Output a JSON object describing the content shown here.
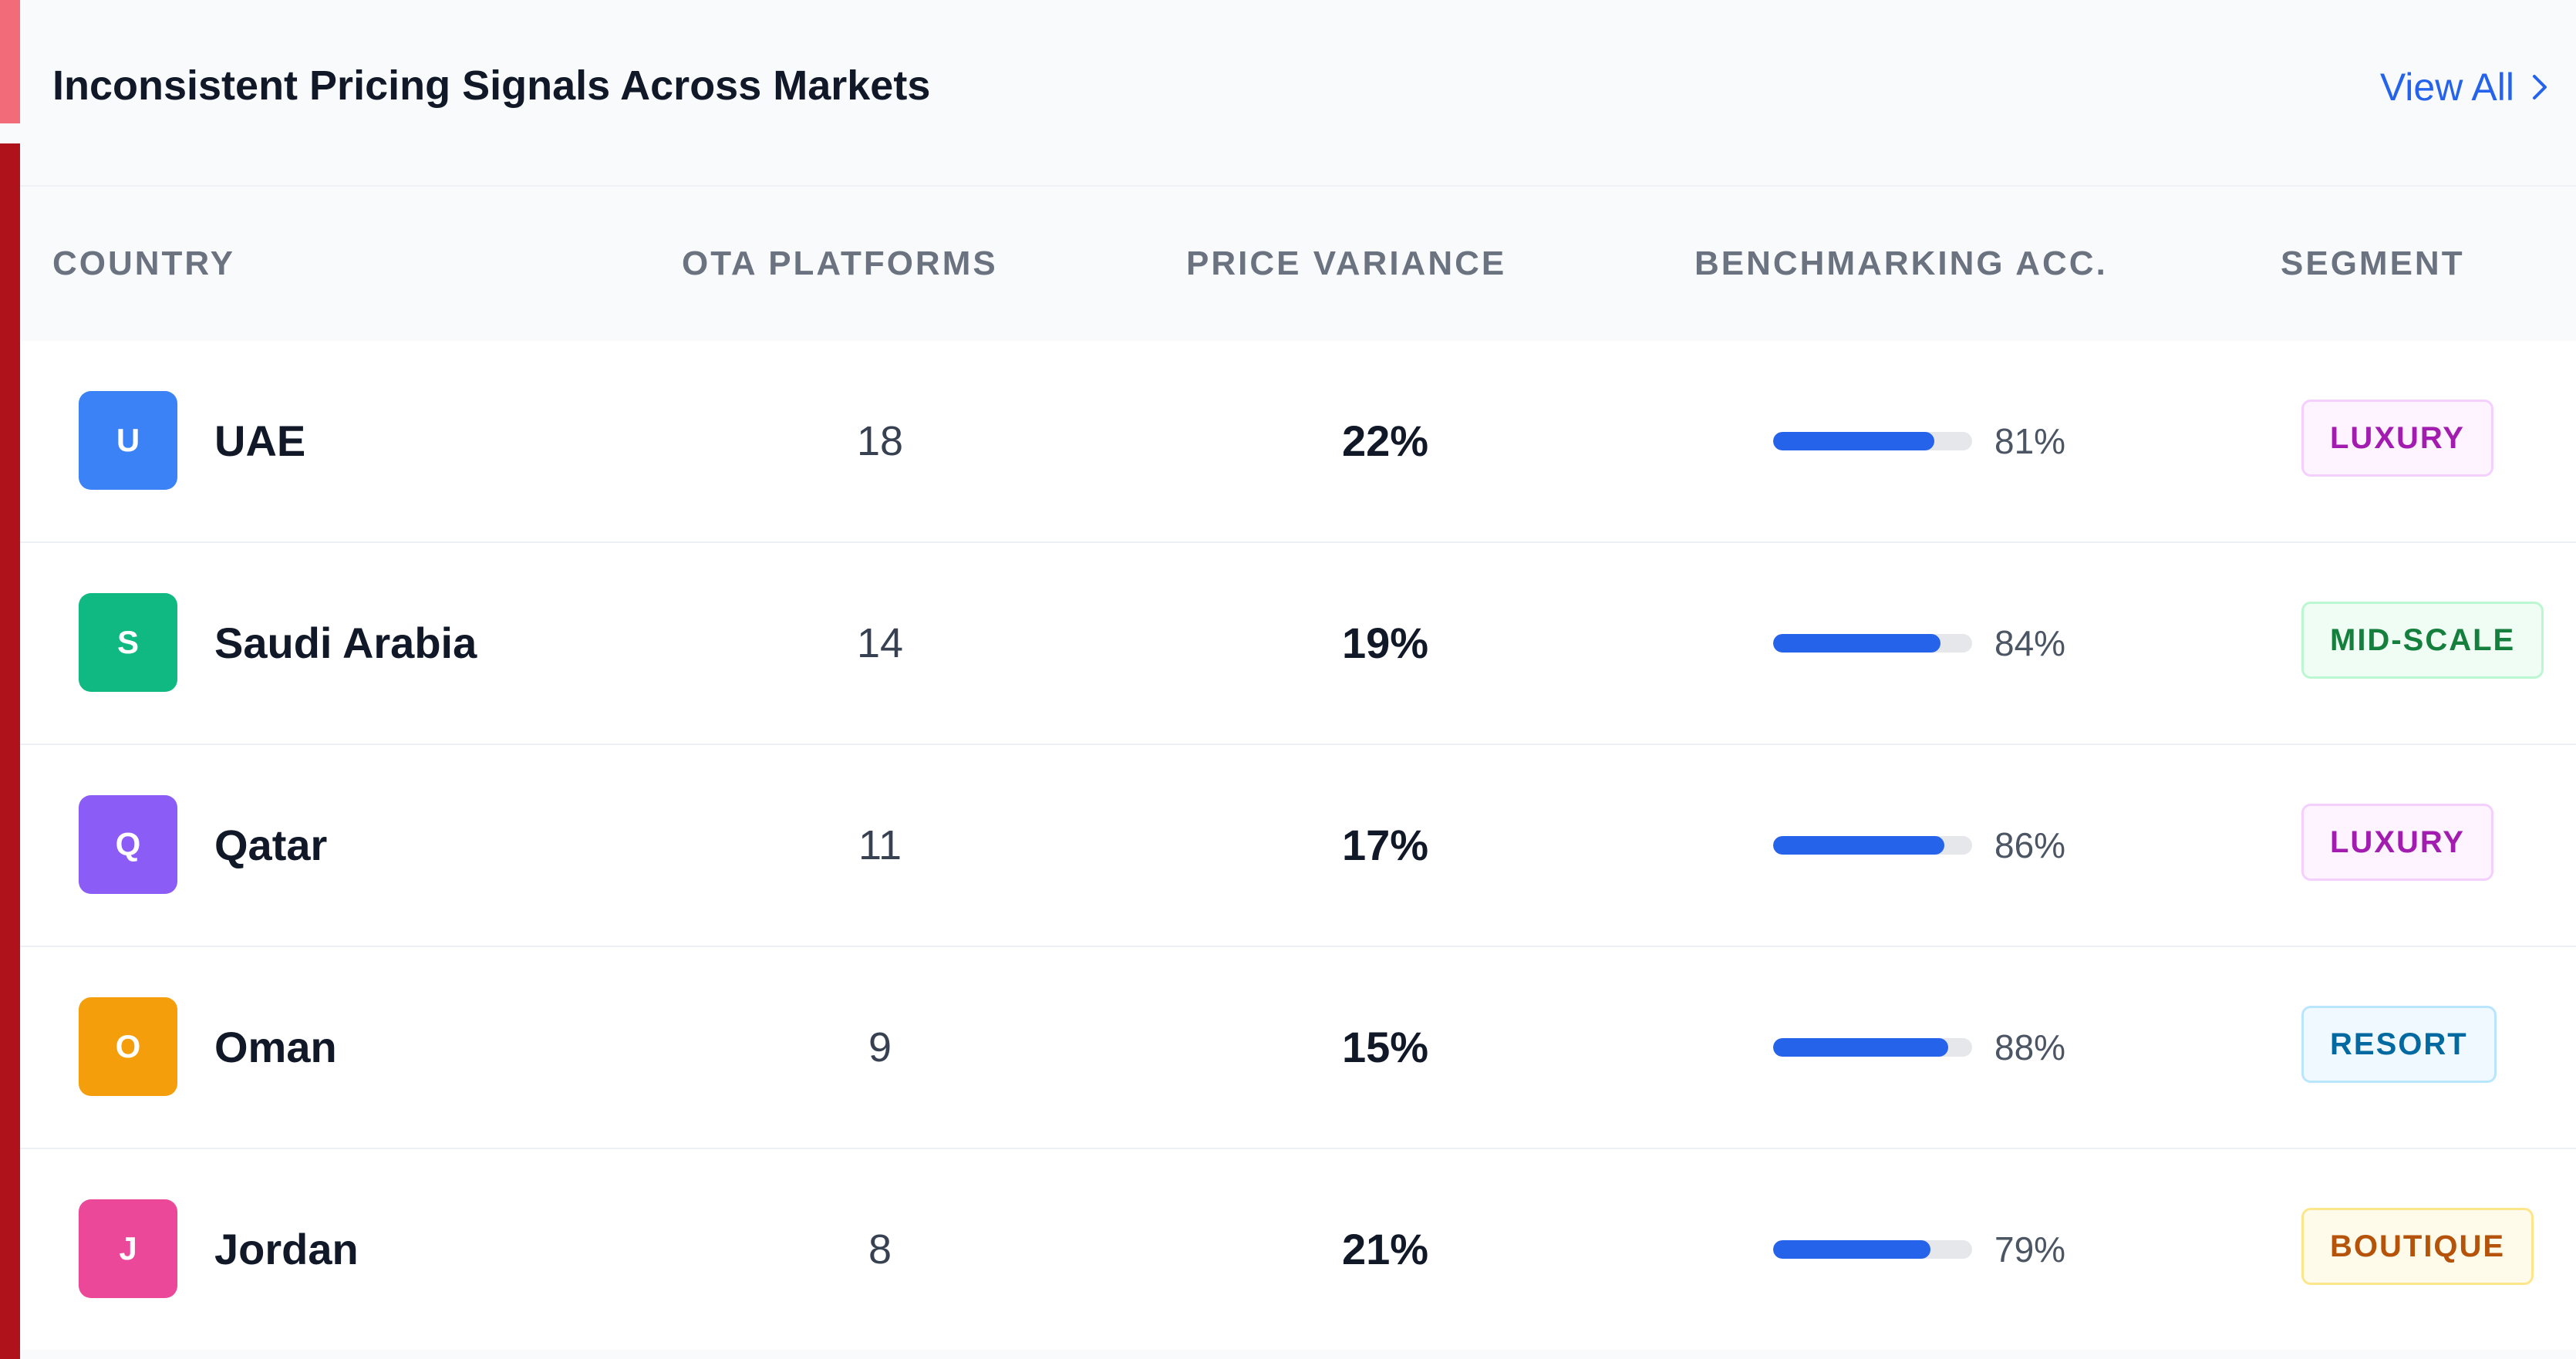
{
  "panel": {
    "title": "Inconsistent Pricing Signals Across Markets",
    "view_all_label": "View All",
    "view_all_icon": "chevron-right-icon"
  },
  "table": {
    "columns": [
      "COUNTRY",
      "OTA PLATFORMS",
      "PRICE VARIANCE",
      "BENCHMARKING ACC.",
      "SEGMENT"
    ],
    "rows": [
      {
        "initial": "U",
        "avatar_color": "#3b82f6",
        "country": "UAE",
        "ota_platforms": "18",
        "price_variance": "22%",
        "benchmarking": "81%",
        "benchmarking_value": 0.81,
        "segment": "LUXURY",
        "segment_style": "luxury"
      },
      {
        "initial": "S",
        "avatar_color": "#10b981",
        "country": "Saudi Arabia",
        "ota_platforms": "14",
        "price_variance": "19%",
        "benchmarking": "84%",
        "benchmarking_value": 0.84,
        "segment": "MID-SCALE",
        "segment_style": "midscale"
      },
      {
        "initial": "Q",
        "avatar_color": "#8b5cf6",
        "country": "Qatar",
        "ota_platforms": "11",
        "price_variance": "17%",
        "benchmarking": "86%",
        "benchmarking_value": 0.86,
        "segment": "LUXURY",
        "segment_style": "luxury"
      },
      {
        "initial": "O",
        "avatar_color": "#f59e0b",
        "country": "Oman",
        "ota_platforms": "9",
        "price_variance": "15%",
        "benchmarking": "88%",
        "benchmarking_value": 0.88,
        "segment": "RESORT",
        "segment_style": "resort"
      },
      {
        "initial": "J",
        "avatar_color": "#ec4899",
        "country": "Jordan",
        "ota_platforms": "8",
        "price_variance": "21%",
        "benchmarking": "79%",
        "benchmarking_value": 0.79,
        "segment": "BOUTIQUE",
        "segment_style": "boutique"
      }
    ]
  },
  "colors": {
    "accent_top": "#f26b78",
    "accent_main": "#b0121c",
    "link": "#2563eb",
    "bar_fill": "#2563eb",
    "bar_track": "#e5e7eb"
  }
}
